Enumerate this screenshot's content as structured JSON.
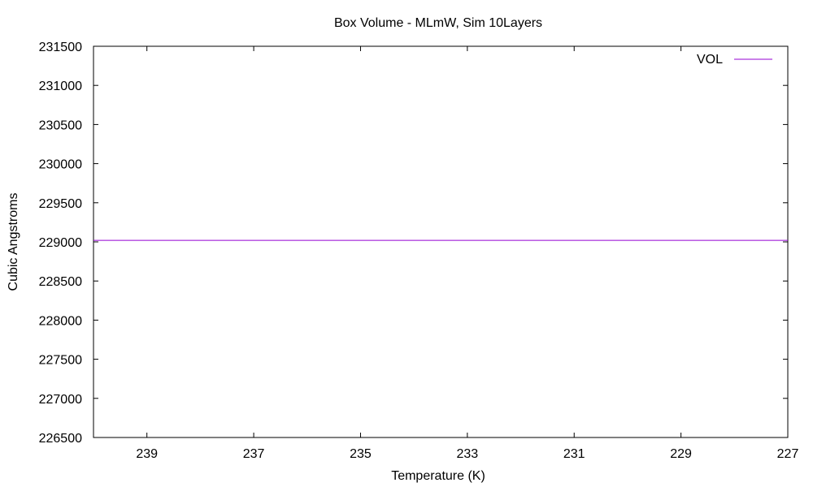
{
  "chart_data": {
    "type": "line",
    "title": "Box Volume - MLmW, Sim 10Layers",
    "xlabel": "Temperature (K)",
    "ylabel": "Cubic Angstroms",
    "xlim": [
      240,
      227
    ],
    "ylim": [
      226500,
      231500
    ],
    "x_ticks": [
      239,
      237,
      235,
      233,
      231,
      229,
      227
    ],
    "y_ticks": [
      226500,
      227000,
      227500,
      228000,
      228500,
      229000,
      229500,
      230000,
      230500,
      231000,
      231500
    ],
    "grid": false,
    "legend_position": "top-right",
    "series": [
      {
        "name": "VOL",
        "color": "#9400d3",
        "x": [
          240,
          227
        ],
        "y": [
          229020,
          229020
        ]
      }
    ]
  }
}
